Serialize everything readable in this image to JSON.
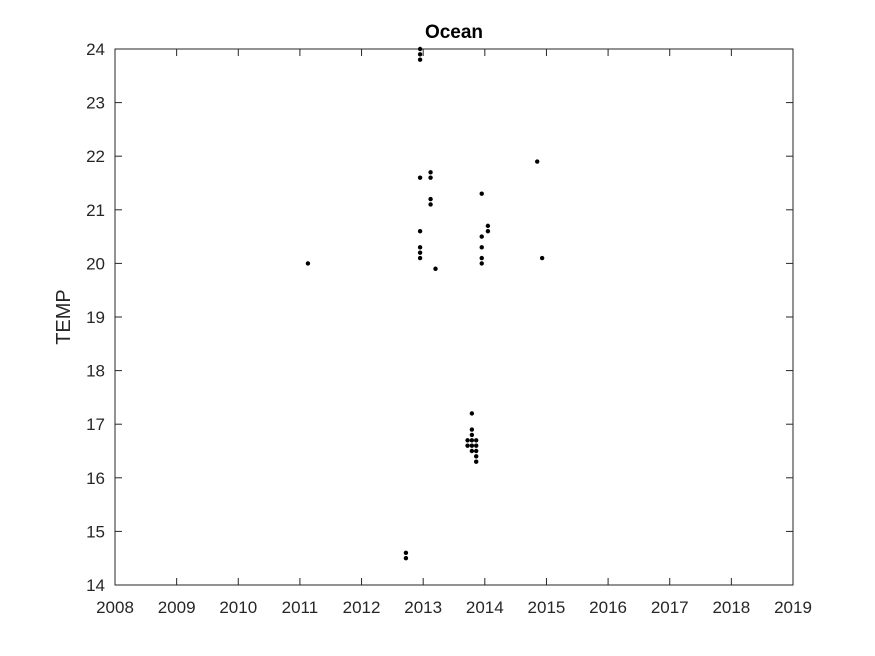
{
  "chart_data": {
    "type": "scatter",
    "title": "Ocean",
    "xlabel": "",
    "ylabel": "TEMP",
    "xlim": [
      2008,
      2019
    ],
    "ylim": [
      14,
      24
    ],
    "xticks": [
      "2008",
      "2009",
      "2010",
      "2011",
      "2012",
      "2013",
      "2014",
      "2015",
      "2016",
      "2017",
      "2018",
      "2019"
    ],
    "yticks": [
      "14",
      "15",
      "16",
      "17",
      "18",
      "19",
      "20",
      "21",
      "22",
      "23",
      "24"
    ],
    "grid": false,
    "legend": "none",
    "marker_color": "#000000",
    "series": [
      {
        "points": [
          [
            2011.13,
            20.0
          ],
          [
            2012.72,
            14.6
          ],
          [
            2012.72,
            14.5
          ],
          [
            2012.95,
            24.0
          ],
          [
            2012.95,
            23.9
          ],
          [
            2012.95,
            23.8
          ],
          [
            2012.95,
            21.6
          ],
          [
            2012.95,
            20.6
          ],
          [
            2012.95,
            20.3
          ],
          [
            2012.95,
            20.2
          ],
          [
            2012.95,
            20.1
          ],
          [
            2013.12,
            21.7
          ],
          [
            2013.12,
            21.6
          ],
          [
            2013.12,
            21.2
          ],
          [
            2013.12,
            21.1
          ],
          [
            2013.2,
            19.9
          ],
          [
            2013.72,
            16.7
          ],
          [
            2013.72,
            16.6
          ],
          [
            2013.79,
            17.2
          ],
          [
            2013.79,
            16.9
          ],
          [
            2013.79,
            16.8
          ],
          [
            2013.79,
            16.7
          ],
          [
            2013.79,
            16.6
          ],
          [
            2013.79,
            16.5
          ],
          [
            2013.86,
            16.7
          ],
          [
            2013.86,
            16.6
          ],
          [
            2013.86,
            16.5
          ],
          [
            2013.86,
            16.4
          ],
          [
            2013.86,
            16.3
          ],
          [
            2013.95,
            21.3
          ],
          [
            2013.95,
            20.5
          ],
          [
            2013.95,
            20.3
          ],
          [
            2013.95,
            20.1
          ],
          [
            2013.95,
            20.0
          ],
          [
            2014.05,
            20.7
          ],
          [
            2014.05,
            20.6
          ],
          [
            2014.85,
            21.9
          ],
          [
            2014.93,
            20.1
          ]
        ]
      }
    ]
  }
}
